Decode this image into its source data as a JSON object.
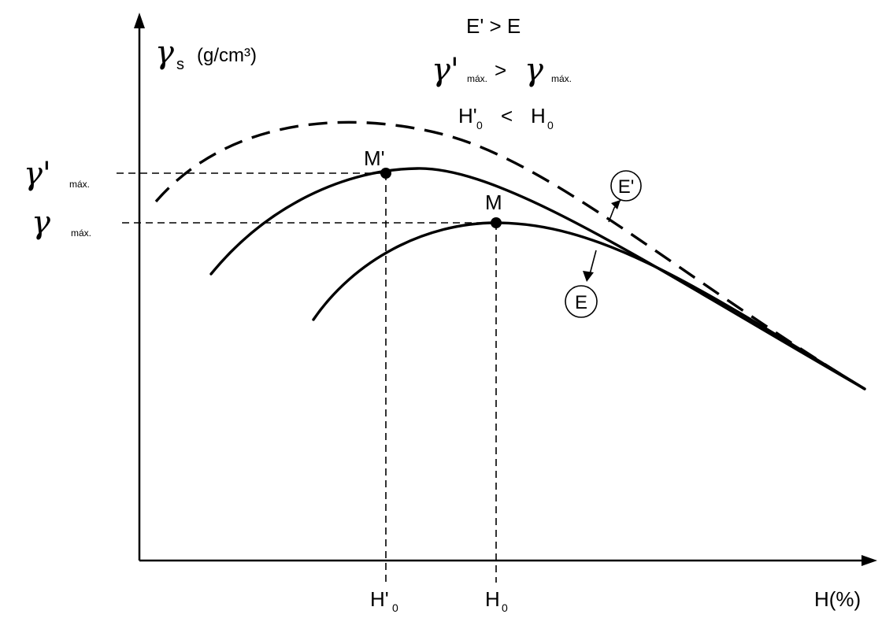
{
  "y_axis": {
    "symbol": "γ",
    "subscript": "s",
    "unit": "(g/cm³)"
  },
  "x_axis": {
    "label": "H(%)"
  },
  "y_ticks": {
    "gamma_prime_max": {
      "symbol": "γ'",
      "subscript": "máx."
    },
    "gamma_max": {
      "symbol": "γ",
      "subscript": "máx."
    }
  },
  "x_ticks": {
    "h_prime_0": {
      "base": "H'",
      "subscript": "0"
    },
    "h_0": {
      "base": "H",
      "subscript": "0"
    }
  },
  "points": {
    "m_prime": "M'",
    "m": "M"
  },
  "curve_labels": {
    "e_prime": "E'",
    "e": "E"
  },
  "relations": {
    "line1": "E' > E",
    "line2_left": "γ'",
    "line2_left_sub": "máx.",
    "line2_op": ">",
    "line2_right": "γ",
    "line2_right_sub": "máx.",
    "line3_left": "H'",
    "line3_left_sub": "0",
    "line3_op": "<",
    "line3_right": "H",
    "line3_right_sub": "0"
  }
}
